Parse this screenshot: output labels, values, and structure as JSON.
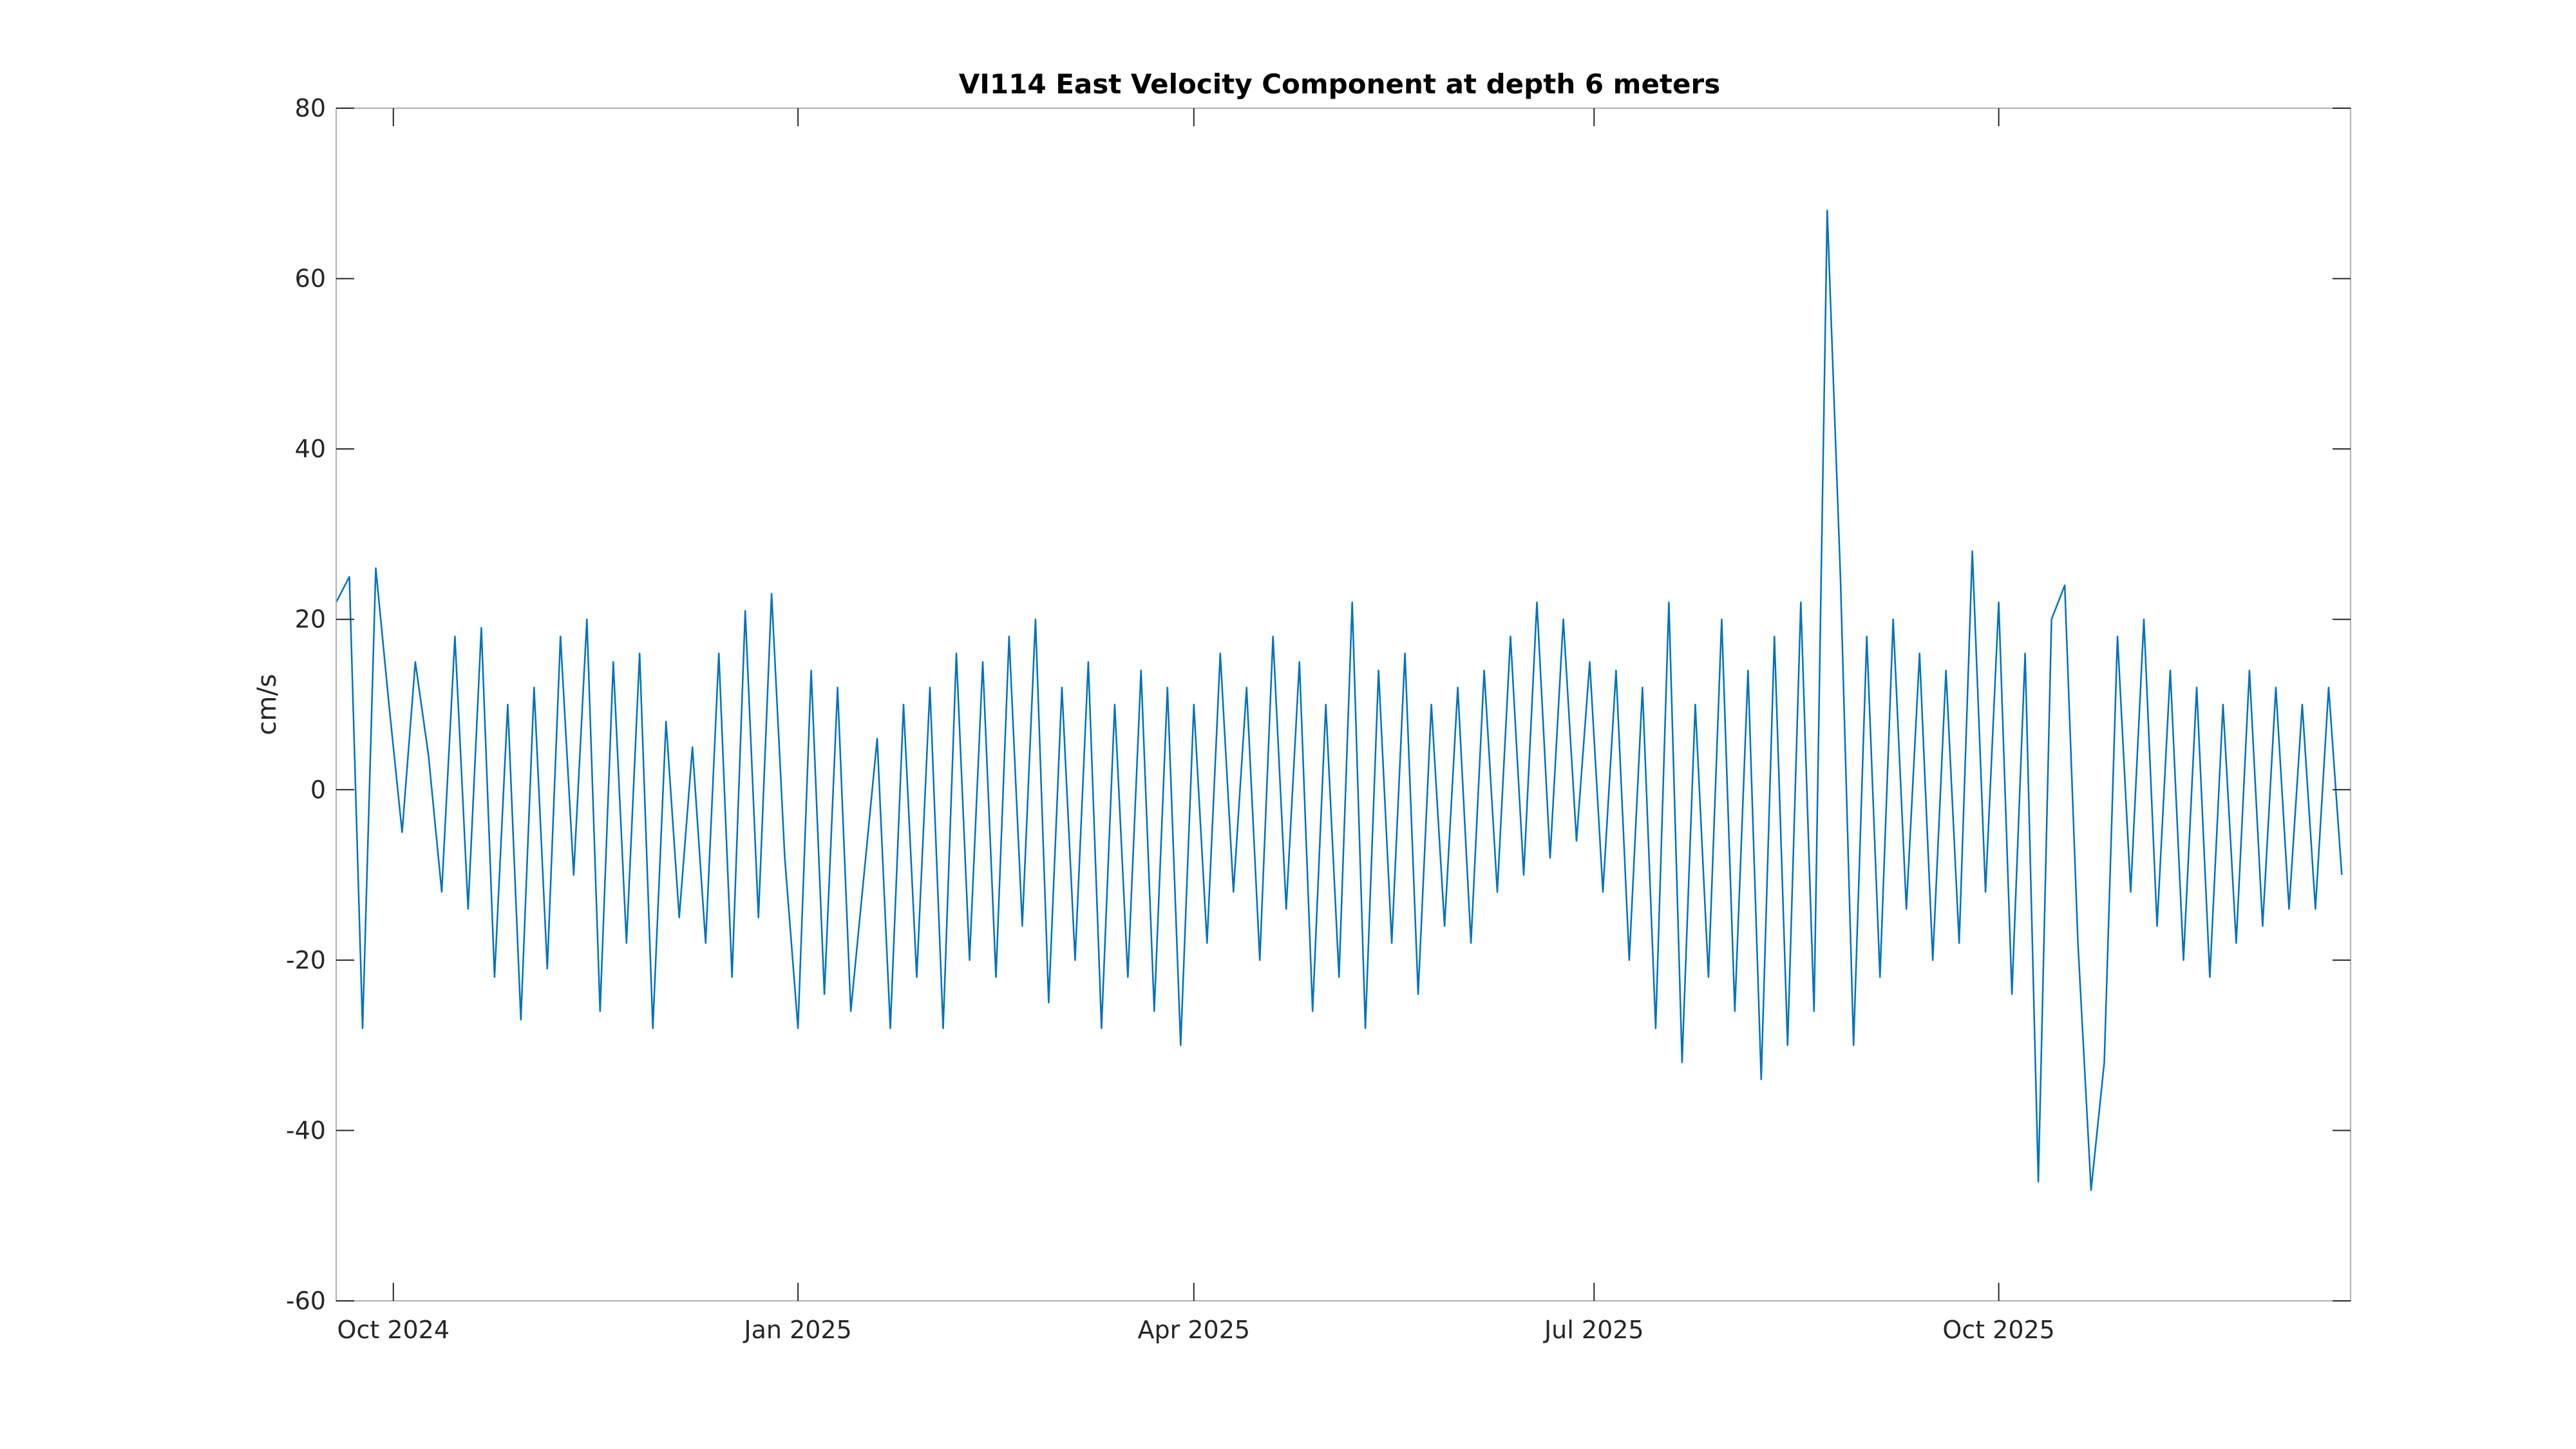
{
  "chart_data": {
    "type": "line",
    "title": "VI114 East Velocity Component at depth 6 meters",
    "xlabel": "",
    "ylabel": "cm/s",
    "x_range": [
      "2024-09-18",
      "2025-12-20"
    ],
    "ylim": [
      -60,
      80
    ],
    "yticks": [
      -60,
      -40,
      -20,
      0,
      20,
      40,
      60,
      80
    ],
    "xticks": [
      {
        "date": "2024-10-01",
        "label": "Oct 2024"
      },
      {
        "date": "2025-01-01",
        "label": "Jan 2025"
      },
      {
        "date": "2025-04-01",
        "label": "Apr 2025"
      },
      {
        "date": "2025-07-01",
        "label": "Jul 2025"
      },
      {
        "date": "2025-10-01",
        "label": "Oct 2025"
      }
    ],
    "grid": false,
    "color": "#0072BD",
    "series": [
      {
        "name": "",
        "x": [
          "2024-09-18",
          "2024-09-21",
          "2024-09-24",
          "2024-09-27",
          "2024-09-30",
          "2024-10-03",
          "2024-10-06",
          "2024-10-09",
          "2024-10-12",
          "2024-10-15",
          "2024-10-18",
          "2024-10-21",
          "2024-10-24",
          "2024-10-27",
          "2024-10-30",
          "2024-11-02",
          "2024-11-05",
          "2024-11-08",
          "2024-11-11",
          "2024-11-14",
          "2024-11-17",
          "2024-11-20",
          "2024-11-23",
          "2024-11-26",
          "2024-11-29",
          "2024-12-02",
          "2024-12-05",
          "2024-12-08",
          "2024-12-11",
          "2024-12-14",
          "2024-12-17",
          "2024-12-20",
          "2024-12-23",
          "2024-12-26",
          "2024-12-29",
          "2025-01-01",
          "2025-01-04",
          "2025-01-07",
          "2025-01-10",
          "2025-01-13",
          "2025-01-16",
          "2025-01-19",
          "2025-01-22",
          "2025-01-25",
          "2025-01-28",
          "2025-01-31",
          "2025-02-03",
          "2025-02-06",
          "2025-02-09",
          "2025-02-12",
          "2025-02-15",
          "2025-02-18",
          "2025-02-21",
          "2025-02-24",
          "2025-02-27",
          "2025-03-02",
          "2025-03-05",
          "2025-03-08",
          "2025-03-11",
          "2025-03-14",
          "2025-03-17",
          "2025-03-20",
          "2025-03-23",
          "2025-03-26",
          "2025-03-29",
          "2025-04-01",
          "2025-04-04",
          "2025-04-07",
          "2025-04-10",
          "2025-04-13",
          "2025-04-16",
          "2025-04-19",
          "2025-04-22",
          "2025-04-25",
          "2025-04-28",
          "2025-05-01",
          "2025-05-04",
          "2025-05-07",
          "2025-05-10",
          "2025-05-13",
          "2025-05-16",
          "2025-05-19",
          "2025-05-22",
          "2025-05-25",
          "2025-05-28",
          "2025-05-31",
          "2025-06-03",
          "2025-06-06",
          "2025-06-09",
          "2025-06-12",
          "2025-06-15",
          "2025-06-18",
          "2025-06-21",
          "2025-06-24",
          "2025-06-27",
          "2025-06-30",
          "2025-07-03",
          "2025-07-06",
          "2025-07-09",
          "2025-07-12",
          "2025-07-15",
          "2025-07-18",
          "2025-07-21",
          "2025-07-24",
          "2025-07-27",
          "2025-07-30",
          "2025-08-02",
          "2025-08-05",
          "2025-08-08",
          "2025-08-11",
          "2025-08-14",
          "2025-08-17",
          "2025-08-20",
          "2025-08-23",
          "2025-08-26",
          "2025-08-29",
          "2025-09-01",
          "2025-09-04",
          "2025-09-07",
          "2025-09-10",
          "2025-09-13",
          "2025-09-16",
          "2025-09-19",
          "2025-09-22",
          "2025-09-25",
          "2025-09-28",
          "2025-10-01",
          "2025-10-04",
          "2025-10-07",
          "2025-10-10",
          "2025-10-13",
          "2025-10-16",
          "2025-10-19",
          "2025-10-22",
          "2025-10-25",
          "2025-10-28",
          "2025-10-31",
          "2025-11-03",
          "2025-11-06",
          "2025-11-09",
          "2025-11-12",
          "2025-11-15",
          "2025-11-18",
          "2025-11-21",
          "2025-11-24",
          "2025-11-27",
          "2025-11-30",
          "2025-12-03",
          "2025-12-06",
          "2025-12-09",
          "2025-12-12",
          "2025-12-15",
          "2025-12-18"
        ],
        "y": [
          22,
          25,
          -28,
          26,
          10,
          -5,
          15,
          4,
          -12,
          18,
          -14,
          19,
          -22,
          10,
          -27,
          12,
          -21,
          18,
          -10,
          20,
          -26,
          15,
          -18,
          16,
          -28,
          8,
          -15,
          5,
          -18,
          16,
          -22,
          21,
          -15,
          23,
          -8,
          -28,
          14,
          -24,
          12,
          -26,
          -10,
          6,
          -28,
          10,
          -22,
          12,
          -28,
          16,
          -20,
          15,
          -22,
          18,
          -16,
          20,
          -25,
          12,
          -20,
          15,
          -28,
          10,
          -22,
          14,
          -26,
          12,
          -30,
          10,
          -18,
          16,
          -12,
          12,
          -20,
          18,
          -14,
          15,
          -26,
          10,
          -22,
          22,
          -28,
          14,
          -18,
          16,
          -24,
          10,
          -16,
          12,
          -18,
          14,
          -12,
          18,
          -10,
          22,
          -8,
          20,
          -6,
          15,
          -12,
          14,
          -20,
          12,
          -28,
          22,
          -32,
          10,
          -22,
          20,
          -26,
          14,
          -34,
          18,
          -30,
          22,
          -26,
          68,
          25,
          -30,
          18,
          -22,
          20,
          -14,
          16,
          -20,
          14,
          -18,
          28,
          -12,
          22,
          -24,
          16,
          -46,
          20,
          24,
          -18,
          -47,
          -32,
          18,
          -12,
          20,
          -16,
          14,
          -20,
          12,
          -22,
          10,
          -18,
          14,
          -16,
          12,
          -14,
          10,
          -14,
          12,
          -10
        ]
      }
    ]
  }
}
